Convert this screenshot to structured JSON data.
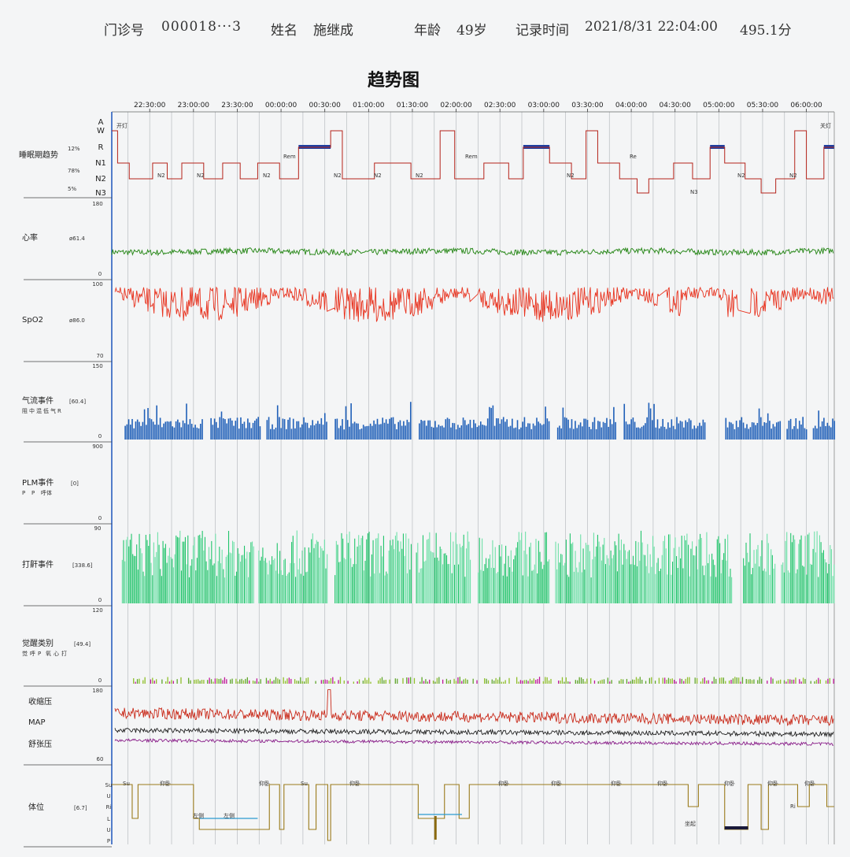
{
  "header": {
    "clinic_label": "门诊号",
    "clinic_value": "000018···3",
    "name_label": "姓名",
    "name_value": "施继成",
    "age_label": "年龄",
    "age_value": "49岁",
    "time_label": "记录时间",
    "time_value": "2021/8/31 22:04:00",
    "duration": "495.1分"
  },
  "chart_data": {
    "type": "line",
    "title": "趋势图",
    "x_ticks": [
      "22:30:00",
      "23:00:00",
      "23:30:00",
      "00:00:00",
      "00:30:00",
      "01:00:00",
      "01:30:00",
      "02:00:00",
      "02:30:00",
      "03:00:00",
      "03:30:00",
      "04:00:00",
      "04:30:00",
      "05:00:00",
      "05:30:00",
      "06:00:00"
    ],
    "start_time": "22:04:00",
    "duration_min": 495.1,
    "panels": [
      {
        "id": "sleep-stage",
        "label": "睡眠期趋势",
        "stage_labels": [
          "A",
          "W",
          "R",
          "N1",
          "N2",
          "N3"
        ],
        "percents": [
          "12%",
          "78%",
          "5%"
        ],
        "stage_marks": [
          "开灯",
          "关灯",
          "Rem",
          "Rem",
          "Re",
          "N2",
          "N3"
        ],
        "segments": [
          [
            0,
            4,
            "W"
          ],
          [
            4,
            12,
            "N1"
          ],
          [
            12,
            28,
            "N2"
          ],
          [
            28,
            38,
            "N1"
          ],
          [
            38,
            48,
            "N2"
          ],
          [
            48,
            63,
            "N1"
          ],
          [
            63,
            76,
            "N2"
          ],
          [
            76,
            88,
            "N1"
          ],
          [
            88,
            100,
            "N2"
          ],
          [
            100,
            115,
            "N1"
          ],
          [
            115,
            128,
            "N2"
          ],
          [
            128,
            150,
            "R"
          ],
          [
            150,
            158,
            "W"
          ],
          [
            158,
            180,
            "N2"
          ],
          [
            180,
            205,
            "N1"
          ],
          [
            205,
            225,
            "N2"
          ],
          [
            225,
            235,
            "W"
          ],
          [
            235,
            255,
            "N2"
          ],
          [
            255,
            272,
            "N1"
          ],
          [
            272,
            282,
            "N2"
          ],
          [
            282,
            300,
            "R"
          ],
          [
            300,
            315,
            "N1"
          ],
          [
            315,
            325,
            "N2"
          ],
          [
            325,
            333,
            "W"
          ],
          [
            333,
            348,
            "N1"
          ],
          [
            348,
            360,
            "N2"
          ],
          [
            360,
            368,
            "N3"
          ],
          [
            368,
            385,
            "N2"
          ],
          [
            385,
            398,
            "N1"
          ],
          [
            398,
            410,
            "N2"
          ],
          [
            410,
            420,
            "R"
          ],
          [
            420,
            434,
            "N1"
          ],
          [
            434,
            445,
            "N2"
          ],
          [
            445,
            455,
            "N3"
          ],
          [
            455,
            468,
            "N2"
          ],
          [
            468,
            476,
            "W"
          ],
          [
            476,
            488,
            "N2"
          ],
          [
            488,
            495,
            "R"
          ]
        ]
      },
      {
        "id": "heart-rate",
        "label": "心率",
        "value": "ø61.4",
        "ymax": 180,
        "ymin": 0,
        "color": "#2e8b1f",
        "mean": 61
      },
      {
        "id": "spo2",
        "label": "SpO2",
        "value": "ø86.0",
        "ymax": 100,
        "ymin": 70,
        "color": "#e8321e",
        "mean": 88
      },
      {
        "id": "airflow",
        "label": "气流事件",
        "value": "[60.4]",
        "legend": [
          "阻",
          "中",
          "混",
          "低",
          "气",
          "R"
        ],
        "legend_colors": [
          "#1e4fa8",
          "#c0179a",
          "#d39b2a",
          "#88a81e",
          "#7fb21c",
          "#cc2a6a"
        ],
        "ymax": 150,
        "ymin": 0,
        "color": "#1f5fb8"
      },
      {
        "id": "plm",
        "label": "PLM事件",
        "value": "[0]",
        "legend": [
          "P",
          "P",
          "呼体"
        ],
        "legend_colors": [
          "#9a9a9a",
          "#9a9a9a",
          "#1e4fa8"
        ],
        "ymax": 900,
        "ymin": 0,
        "color": "#888888"
      },
      {
        "id": "snore",
        "label": "打鼾事件",
        "value": "[338.6]",
        "ymax": 90,
        "ymin": 0,
        "color": "#1fc46a"
      },
      {
        "id": "arousal",
        "label": "觉醒类别",
        "value": "[49.4]",
        "legend": [
          "觉",
          "呼",
          "P",
          "氧",
          "心",
          "打"
        ],
        "legend_colors": [
          "#c0179a",
          "#1e4fa8",
          "#888888",
          "#e03a2a",
          "#d2a020",
          "#1e9a6a"
        ],
        "ymax": 120,
        "ymin": 0,
        "color": "#8fbf2a"
      },
      {
        "id": "bp",
        "labels": [
          "收缩压",
          "MAP",
          "舒张压"
        ],
        "label_colors": [
          "#c92a1a",
          "#222222",
          "#8a1f8a"
        ],
        "ymax": 180,
        "ymin": 60
      },
      {
        "id": "position",
        "label": "体位",
        "value": "[6.7]",
        "levels": [
          "Su",
          "U",
          "Ri",
          "L",
          "U",
          "P"
        ],
        "level_colors": [
          "#b02525",
          "#2a3a9a",
          "#b02a7a",
          "#2a7ab0",
          "#2a3a9a",
          "#9a7a1a"
        ],
        "position_marks": [
          "Su",
          "仰卧",
          "仰卧",
          "Su",
          "仰卧",
          "仰卧",
          "仰卧",
          "仰卧",
          "仰卧",
          "仰卧",
          "仰卧",
          "仰卧",
          "左侧",
          "左侧",
          "坐起",
          "Ri"
        ]
      }
    ]
  }
}
